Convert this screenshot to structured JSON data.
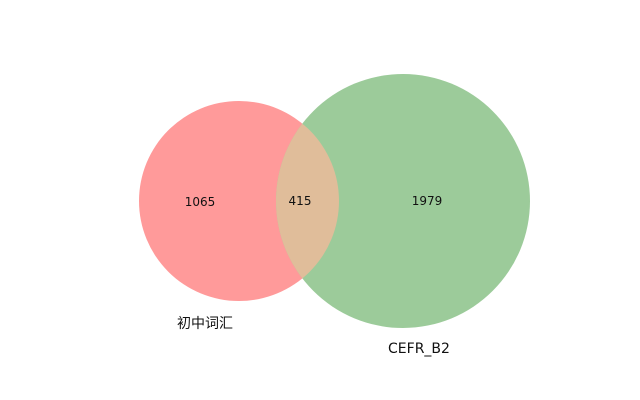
{
  "chart_data": {
    "type": "venn",
    "sets": [
      {
        "label": "初中词汇",
        "only_count": "1065",
        "color": "#ff9a9a"
      },
      {
        "label": "CEFR_B2",
        "only_count": "1979",
        "color": "#9ccb9a"
      }
    ],
    "intersection": {
      "count": "415",
      "color": "#e0bd9a"
    }
  }
}
